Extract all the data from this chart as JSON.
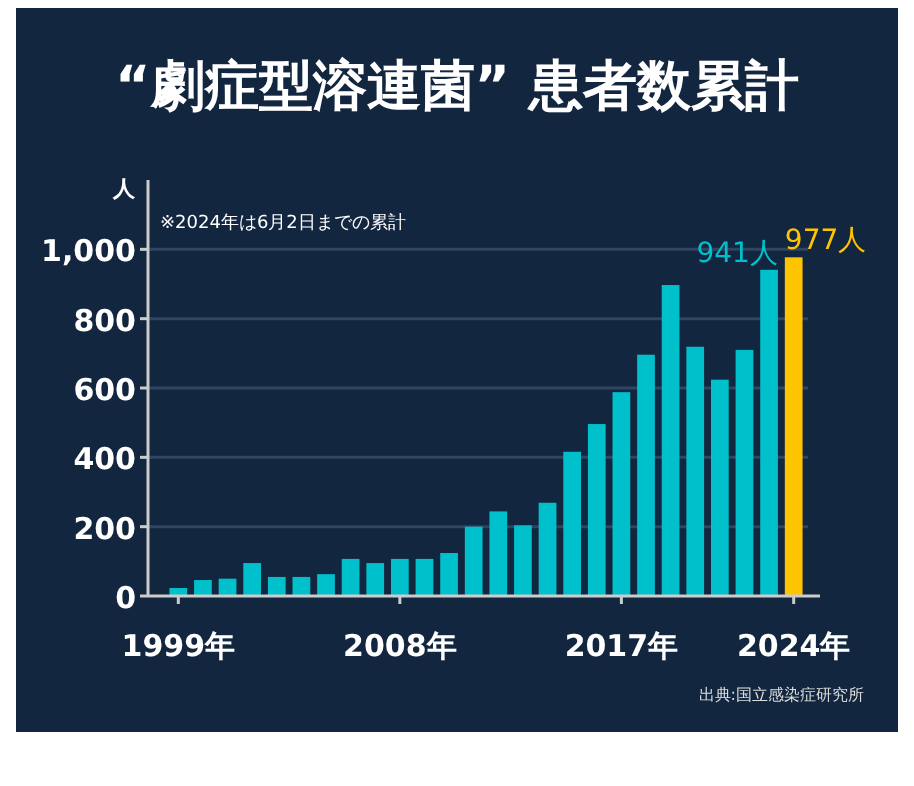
{
  "chart_data": {
    "type": "bar",
    "title": "“劇症型溶連菌” 患者数累計",
    "ylabel": "人",
    "annotations": [
      "※2024年は6月2日までの累計",
      "出典:国立感染症研究所"
    ],
    "categories": [
      "1999年",
      null,
      null,
      null,
      null,
      null,
      null,
      null,
      null,
      "2008年",
      null,
      null,
      null,
      null,
      null,
      null,
      null,
      null,
      "2017年",
      null,
      null,
      null,
      null,
      null,
      null,
      "2024年"
    ],
    "values": [
      23,
      46,
      50,
      95,
      55,
      55,
      63,
      107,
      95,
      107,
      107,
      124,
      200,
      244,
      204,
      269,
      416,
      496,
      588,
      696,
      897,
      719,
      624,
      710,
      941,
      977
    ],
    "colors": [
      "#00c0cc",
      "#00c0cc",
      "#00c0cc",
      "#00c0cc",
      "#00c0cc",
      "#00c0cc",
      "#00c0cc",
      "#00c0cc",
      "#00c0cc",
      "#00c0cc",
      "#00c0cc",
      "#00c0cc",
      "#00c0cc",
      "#00c0cc",
      "#00c0cc",
      "#00c0cc",
      "#00c0cc",
      "#00c0cc",
      "#00c0cc",
      "#00c0cc",
      "#00c0cc",
      "#00c0cc",
      "#00c0cc",
      "#00c0cc",
      "#00c0cc",
      "#ffc400"
    ],
    "value_labels": [
      null,
      null,
      null,
      null,
      null,
      null,
      null,
      null,
      null,
      null,
      null,
      null,
      null,
      null,
      null,
      null,
      null,
      null,
      null,
      null,
      null,
      null,
      null,
      null,
      "941人",
      "977人"
    ],
    "ylim": [
      0,
      1200
    ],
    "yticks": [
      0,
      200,
      400,
      600,
      800,
      {
        "value": 1000,
        "label": "1,000"
      }
    ],
    "grid": "y"
  }
}
